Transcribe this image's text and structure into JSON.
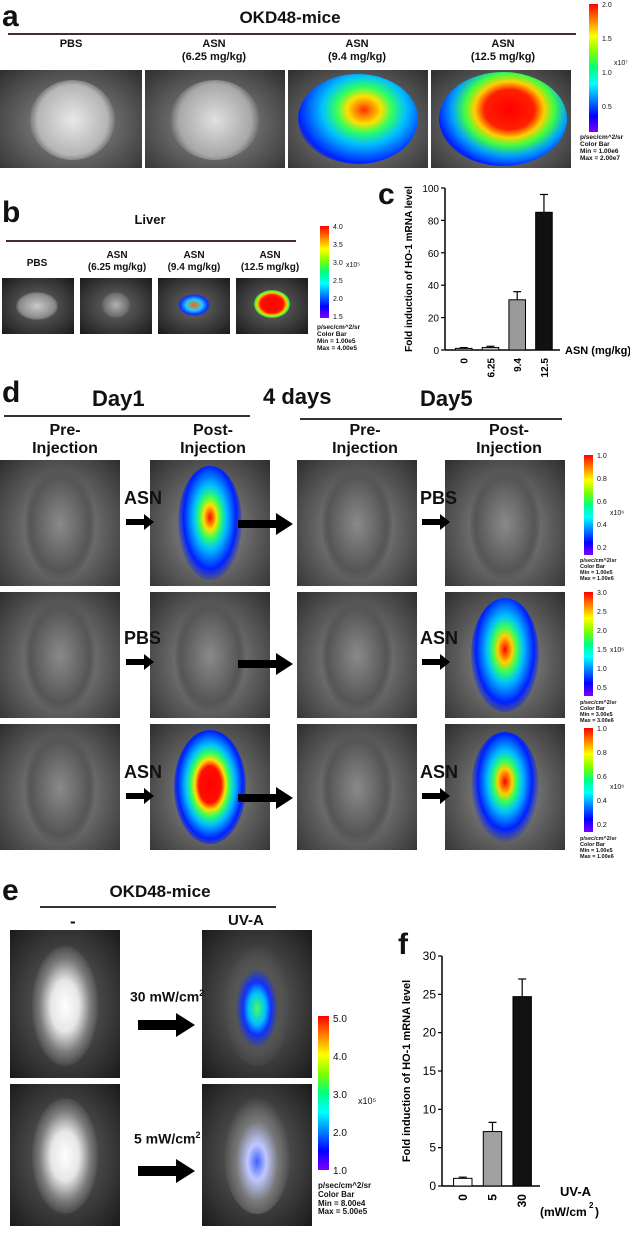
{
  "panel_a": {
    "letter": "a",
    "title": "OKD48-mice",
    "labels": [
      {
        "line1": "PBS",
        "line2": ""
      },
      {
        "line1": "ASN",
        "line2": "(6.25 mg/kg)"
      },
      {
        "line1": "ASN",
        "line2": "(9.4 mg/kg)"
      },
      {
        "line1": "ASN",
        "line2": "(12.5 mg/kg)"
      }
    ],
    "colorbar": {
      "ticks": [
        "2.0",
        "1.5",
        "1.0",
        "0.5"
      ],
      "exponent": "x10⁷",
      "info": "p/sec/cm^2/sr\nColor Bar\nMin = 1.00e6\nMax = 2.00e7"
    }
  },
  "panel_b": {
    "letter": "b",
    "title": "Liver",
    "labels": [
      {
        "line1": "PBS",
        "line2": ""
      },
      {
        "line1": "ASN",
        "line2": "(6.25 mg/kg)"
      },
      {
        "line1": "ASN",
        "line2": "(9.4 mg/kg)"
      },
      {
        "line1": "ASN",
        "line2": "(12.5 mg/kg)"
      }
    ],
    "colorbar": {
      "ticks": [
        "4.0",
        "3.5",
        "3.0",
        "2.5",
        "2.0",
        "1.5"
      ],
      "exponent": "x10⁵",
      "info": "p/sec/cm^2/sr\nColor Bar\nMin = 1.00e5\nMax = 4.00e5"
    }
  },
  "panel_c": {
    "letter": "c"
  },
  "panel_d": {
    "letter": "d",
    "day1": "Day1",
    "gap": "4 days",
    "day5": "Day5",
    "pre": "Pre-\nInjection",
    "post": "Post-\nInjection",
    "rows": [
      {
        "left_treat": "ASN",
        "right_treat": "PBS",
        "colorbar": {
          "ticks": [
            "1.0",
            "0.8",
            "0.6",
            "0.4",
            "0.2"
          ],
          "exponent": "x10⁶",
          "info": "p/sec/cm^2/sr\nColor Bar\nMin = 1.00e5\nMax = 1.00e6"
        }
      },
      {
        "left_treat": "PBS",
        "right_treat": "ASN",
        "colorbar": {
          "ticks": [
            "3.0",
            "2.5",
            "2.0",
            "1.5",
            "1.0",
            "0.5"
          ],
          "exponent": "x10⁶",
          "info": "p/sec/cm^2/sr\nColor Bar\nMin = 3.00e5\nMax = 3.00e6"
        }
      },
      {
        "left_treat": "ASN",
        "right_treat": "ASN",
        "colorbar": {
          "ticks": [
            "1.0",
            "0.8",
            "0.6",
            "0.4",
            "0.2"
          ],
          "exponent": "x10⁶",
          "info": "p/sec/cm^2/sr\nColor Bar\nMin = 1.00e5\nMax = 1.00e6"
        }
      }
    ]
  },
  "panel_e": {
    "letter": "e",
    "title": "OKD48-mice",
    "left_label": "-",
    "right_label": "UV-A",
    "dose1": "30 mW/cm",
    "dose2": "5 mW/cm",
    "sup": "2",
    "colorbar": {
      "ticks": [
        "5.0",
        "4.0",
        "3.0",
        "2.0",
        "1.0"
      ],
      "exponent": "x10⁵",
      "info": "p/sec/cm^2/sr\nColor Bar\nMin = 8.00e4\nMax = 5.00e5"
    }
  },
  "panel_f": {
    "letter": "f"
  },
  "chart_data": [
    {
      "type": "bar",
      "panel": "c",
      "categories": [
        "0",
        "6.25",
        "9.4",
        "12.5"
      ],
      "values": [
        1,
        1.5,
        31,
        85
      ],
      "errors": [
        0.5,
        0.8,
        5,
        11
      ],
      "bar_colors": [
        "#d0d0d0",
        "#d0d0d0",
        "#9a9a9a",
        "#111111"
      ],
      "ylabel": "Fold induction of HO-1 mRNA level",
      "xlabel": "ASN (mg/kg)",
      "ylim": [
        0,
        100
      ],
      "yticks": [
        "0",
        "20",
        "40",
        "60",
        "80",
        "100"
      ]
    },
    {
      "type": "bar",
      "panel": "f",
      "categories": [
        "0",
        "5",
        "30"
      ],
      "values": [
        1,
        7.1,
        24.7
      ],
      "errors": [
        0.15,
        1.2,
        2.3
      ],
      "bar_colors": [
        "#ffffff",
        "#a0a0a0",
        "#111111"
      ],
      "ylabel": "Fold induction of HO-1 mRNA level",
      "xlabel": "UV-A",
      "xlabel2": "(mW/cm",
      "xlabel2_sup": "2",
      "ylim": [
        0,
        30
      ],
      "yticks": [
        "0",
        "5",
        "10",
        "15",
        "20",
        "25",
        "30"
      ]
    }
  ]
}
